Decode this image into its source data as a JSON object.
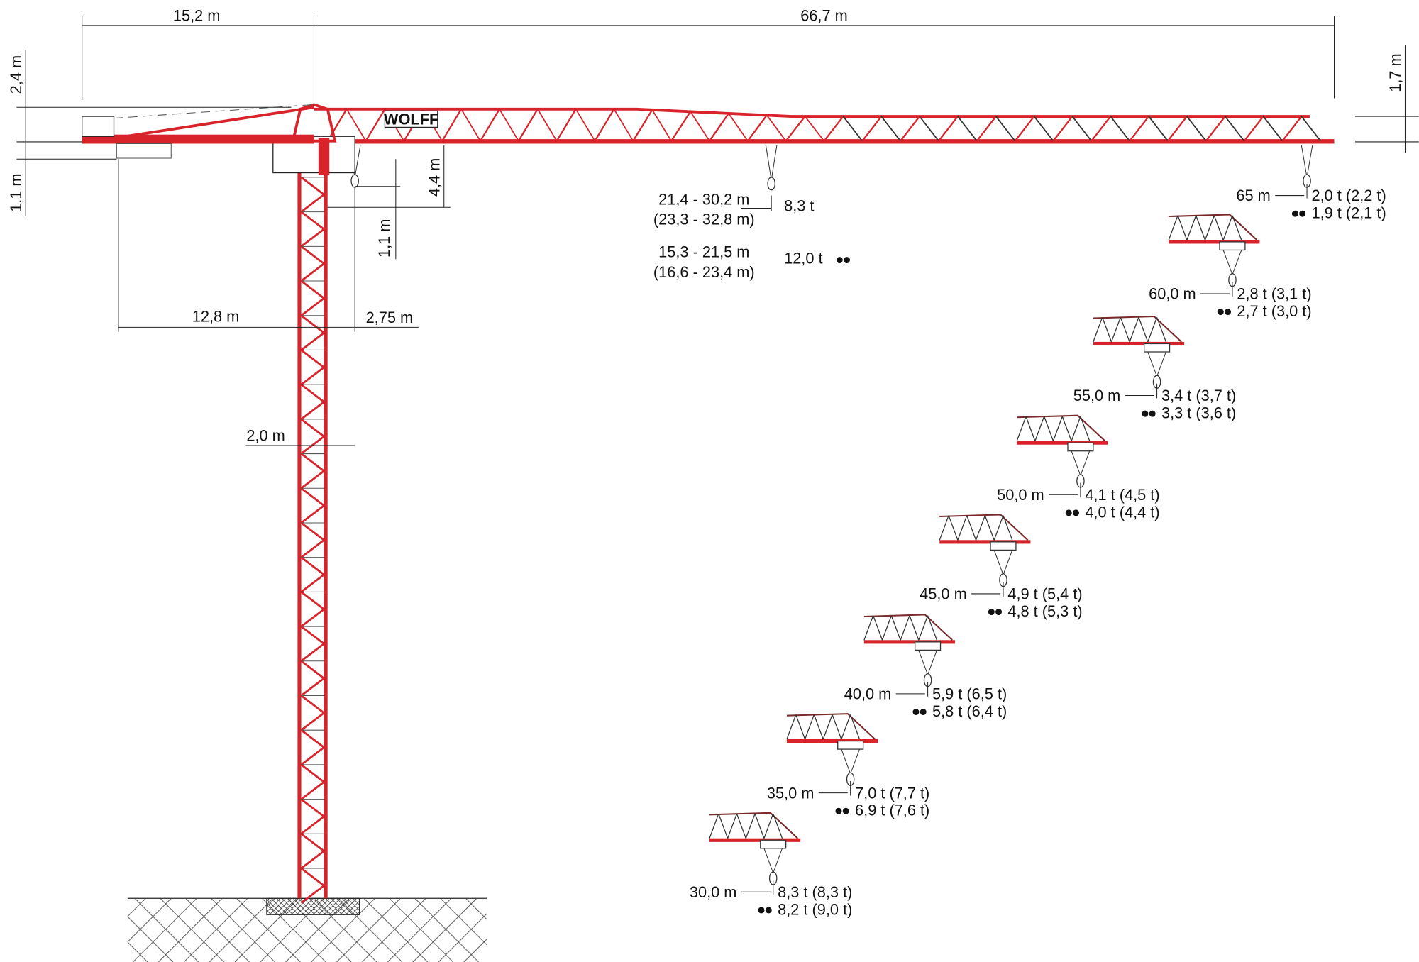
{
  "brand": "WOLFF",
  "colors": {
    "crane": "#d8232a",
    "lines": "#222222"
  },
  "dimensions": {
    "counter_jib_length": "15,2 m",
    "jib_length": "66,7 m",
    "counter_jib_height": "2,4 m",
    "below_jib_left": "1,1 m",
    "jib_tip_height": "1,7 m",
    "hook_clearance": "4,4 m",
    "trolley_offset": "1,1 m",
    "counterweight_radius": "12,8 m",
    "tower_offset": "2,75 m",
    "tower_width": "2,0 m"
  },
  "max_load": {
    "range1": "21,4 - 30,2 m",
    "range1_alt": "(23,3 - 32,8 m)",
    "load1": "8,3 t",
    "range2": "15,3 - 21,5 m",
    "range2_alt": "(16,6 - 23,4 m)",
    "load2": "12,0 t",
    "icon": "double-fall-hook-icon"
  },
  "load_chart": [
    {
      "radius": "65 m",
      "single": "2,0 t (2,2 t)",
      "double": "1,9 t (2,1 t)"
    },
    {
      "radius": "60,0 m",
      "single": "2,8 t (3,1 t)",
      "double": "2,7 t (3,0 t)"
    },
    {
      "radius": "55,0 m",
      "single": "3,4 t (3,7 t)",
      "double": "3,3 t (3,6 t)"
    },
    {
      "radius": "50,0 m",
      "single": "4,1 t (4,5 t)",
      "double": "4,0 t (4,4 t)"
    },
    {
      "radius": "45,0 m",
      "single": "4,9 t (5,4 t)",
      "double": "4,8 t (5,3 t)"
    },
    {
      "radius": "40,0 m",
      "single": "5,9 t (6,5 t)",
      "double": "5,8 t (6,4 t)"
    },
    {
      "radius": "35,0 m",
      "single": "7,0 t (7,7 t)",
      "double": "6,9 t (7,6 t)"
    },
    {
      "radius": "30,0 m",
      "single": "8,3 t (8,3 t)",
      "double": "8,2 t (9,0 t)"
    }
  ]
}
